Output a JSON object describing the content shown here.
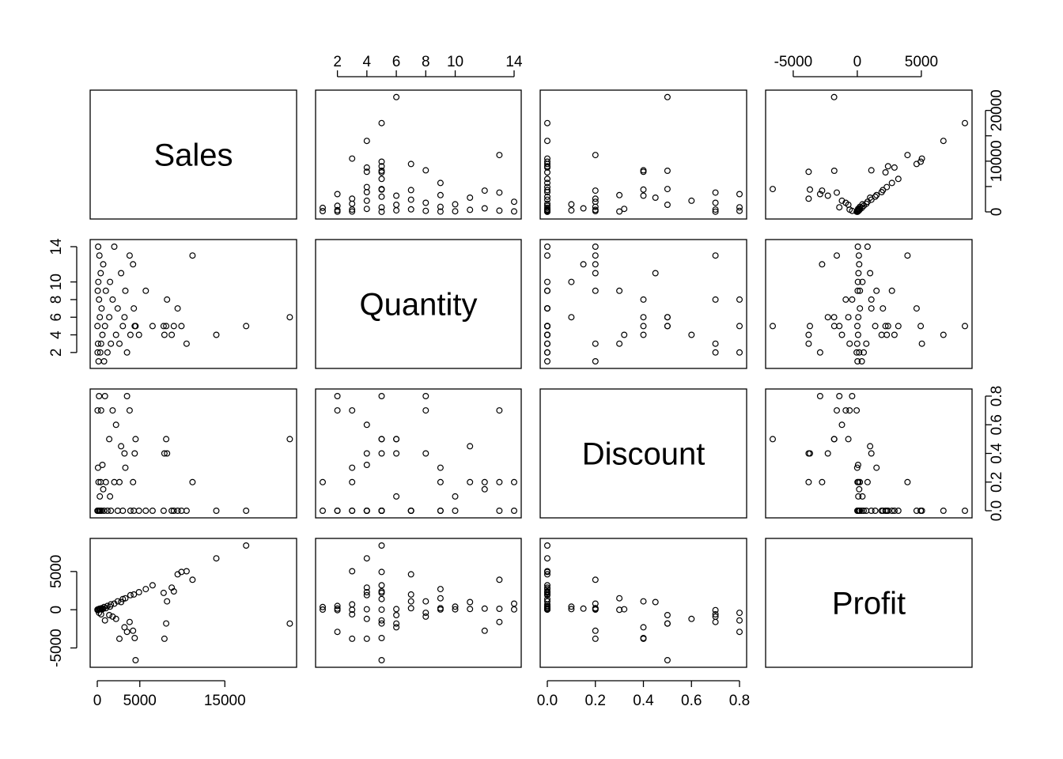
{
  "chart_data": {
    "type": "scatter",
    "title": "",
    "variables": [
      {
        "name": "Sales",
        "range": [
          0,
          22600
        ],
        "ticks": [
          0,
          5000,
          15000
        ],
        "tick_labels": [
          "0",
          "5000",
          "15000"
        ]
      },
      {
        "name": "Quantity",
        "range": [
          1,
          14
        ],
        "ticks": [
          2,
          4,
          6,
          8,
          10,
          14
        ],
        "tick_labels": [
          "2",
          "4",
          "6",
          "8",
          "10",
          "14"
        ]
      },
      {
        "name": "Discount",
        "range": [
          0,
          0.8
        ],
        "ticks": [
          0,
          0.2,
          0.4,
          0.6,
          0.8
        ],
        "tick_labels": [
          "0.0",
          "0.2",
          "0.4",
          "0.6",
          "0.8"
        ]
      },
      {
        "name": "Profit",
        "range": [
          -6600,
          8400
        ],
        "ticks": [
          -5000,
          0,
          5000
        ],
        "tick_labels": [
          "-5000",
          "0",
          "5000"
        ]
      }
    ],
    "sales_axis_right": {
      "range": [
        0,
        22600
      ],
      "ticks": [
        0,
        5000,
        10000,
        15000,
        20000
      ],
      "tick_labels": [
        "0",
        "",
        "10000",
        "",
        "20000"
      ]
    },
    "points": [
      {
        "sales": 22638,
        "quantity": 6,
        "discount": 0.5,
        "profit": -1811
      },
      {
        "sales": 17500,
        "quantity": 5,
        "discount": 0.0,
        "profit": 8400
      },
      {
        "sales": 13999,
        "quantity": 4,
        "discount": 0.0,
        "profit": 6720
      },
      {
        "sales": 11200,
        "quantity": 13,
        "discount": 0.2,
        "profit": 3920
      },
      {
        "sales": 10500,
        "quantity": 3,
        "discount": 0.0,
        "profit": 5040
      },
      {
        "sales": 9900,
        "quantity": 5,
        "discount": 0.0,
        "profit": 4950
      },
      {
        "sales": 9450,
        "quantity": 7,
        "discount": 0.0,
        "profit": 4630
      },
      {
        "sales": 9000,
        "quantity": 5,
        "discount": 0.0,
        "profit": 2400
      },
      {
        "sales": 8750,
        "quantity": 4,
        "discount": 0.0,
        "profit": 2900
      },
      {
        "sales": 8200,
        "quantity": 8,
        "discount": 0.4,
        "profit": 1100
      },
      {
        "sales": 8100,
        "quantity": 5,
        "discount": 0.5,
        "profit": -1800
      },
      {
        "sales": 7900,
        "quantity": 4,
        "discount": 0.4,
        "profit": -3800
      },
      {
        "sales": 7800,
        "quantity": 5,
        "discount": 0.0,
        "profit": 2200
      },
      {
        "sales": 6500,
        "quantity": 5,
        "discount": 0.0,
        "profit": 3200
      },
      {
        "sales": 5700,
        "quantity": 9,
        "discount": 0.0,
        "profit": 2700
      },
      {
        "sales": 4900,
        "quantity": 4,
        "discount": 0.0,
        "profit": 2300
      },
      {
        "sales": 4500,
        "quantity": 5,
        "discount": 0.5,
        "profit": -6600
      },
      {
        "sales": 4400,
        "quantity": 5,
        "discount": 0.4,
        "profit": -3700
      },
      {
        "sales": 4300,
        "quantity": 7,
        "discount": 0.0,
        "profit": 2000
      },
      {
        "sales": 4200,
        "quantity": 12,
        "discount": 0.2,
        "profit": -2750
      },
      {
        "sales": 3900,
        "quantity": 4,
        "discount": 0.0,
        "profit": 1900
      },
      {
        "sales": 3800,
        "quantity": 13,
        "discount": 0.7,
        "profit": -1600
      },
      {
        "sales": 3500,
        "quantity": 2,
        "discount": 0.8,
        "profit": -2900
      },
      {
        "sales": 3300,
        "quantity": 9,
        "discount": 0.3,
        "profit": 1500
      },
      {
        "sales": 3200,
        "quantity": 6,
        "discount": 0.4,
        "profit": -2300
      },
      {
        "sales": 3000,
        "quantity": 5,
        "discount": 0.0,
        "profit": 1400
      },
      {
        "sales": 2800,
        "quantity": 11,
        "discount": 0.45,
        "profit": 1000
      },
      {
        "sales": 2600,
        "quantity": 3,
        "discount": 0.2,
        "profit": -3800
      },
      {
        "sales": 2400,
        "quantity": 7,
        "discount": 0.0,
        "profit": 1100
      },
      {
        "sales": 2200,
        "quantity": 4,
        "discount": 0.6,
        "profit": -1200
      },
      {
        "sales": 2000,
        "quantity": 14,
        "discount": 0.2,
        "profit": 800
      },
      {
        "sales": 1800,
        "quantity": 8,
        "discount": 0.7,
        "profit": -900
      },
      {
        "sales": 1600,
        "quantity": 3,
        "discount": 0.0,
        "profit": 700
      },
      {
        "sales": 1500,
        "quantity": 10,
        "discount": 0.1,
        "profit": 400
      },
      {
        "sales": 1400,
        "quantity": 6,
        "discount": 0.5,
        "profit": -700
      },
      {
        "sales": 1200,
        "quantity": 2,
        "discount": 0.0,
        "profit": 500
      },
      {
        "sales": 1000,
        "quantity": 9,
        "discount": 0.2,
        "profit": 200
      },
      {
        "sales": 900,
        "quantity": 5,
        "discount": 0.8,
        "profit": -1400
      },
      {
        "sales": 800,
        "quantity": 1,
        "discount": 0.0,
        "profit": 350
      },
      {
        "sales": 700,
        "quantity": 12,
        "discount": 0.15,
        "profit": 150
      },
      {
        "sales": 600,
        "quantity": 4,
        "discount": 0.32,
        "profit": 60
      },
      {
        "sales": 500,
        "quantity": 7,
        "discount": 0.0,
        "profit": 200
      },
      {
        "sales": 450,
        "quantity": 3,
        "discount": 0.7,
        "profit": -600
      },
      {
        "sales": 400,
        "quantity": 11,
        "discount": 0.2,
        "profit": 90
      },
      {
        "sales": 350,
        "quantity": 2,
        "discount": 0.0,
        "profit": 150
      },
      {
        "sales": 300,
        "quantity": 6,
        "discount": 0.1,
        "profit": 80
      },
      {
        "sales": 250,
        "quantity": 13,
        "discount": 0.0,
        "profit": 120
      },
      {
        "sales": 200,
        "quantity": 8,
        "discount": 0.8,
        "profit": -400
      },
      {
        "sales": 150,
        "quantity": 1,
        "discount": 0.2,
        "profit": 20
      },
      {
        "sales": 120,
        "quantity": 10,
        "discount": 0.0,
        "profit": 50
      },
      {
        "sales": 100,
        "quantity": 14,
        "discount": 0.0,
        "profit": 40
      },
      {
        "sales": 80,
        "quantity": 3,
        "discount": 0.3,
        "profit": -10
      },
      {
        "sales": 60,
        "quantity": 9,
        "discount": 0.0,
        "profit": 30
      },
      {
        "sales": 40,
        "quantity": 2,
        "discount": 0.7,
        "profit": -50
      },
      {
        "sales": 20,
        "quantity": 5,
        "discount": 0.0,
        "profit": 8
      }
    ],
    "xlabel": "",
    "ylabel": "",
    "grid": false,
    "legend": "none"
  }
}
